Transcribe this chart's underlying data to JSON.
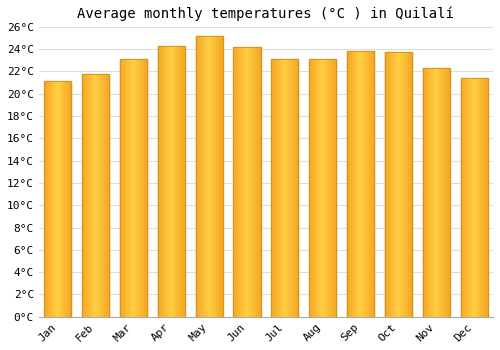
{
  "title": "Average monthly temperatures (°C ) in Quilalí",
  "months": [
    "Jan",
    "Feb",
    "Mar",
    "Apr",
    "May",
    "Jun",
    "Jul",
    "Aug",
    "Sep",
    "Oct",
    "Nov",
    "Dec"
  ],
  "temperatures": [
    21.1,
    21.8,
    23.1,
    24.3,
    25.2,
    24.2,
    23.1,
    23.1,
    23.8,
    23.7,
    22.3,
    21.4
  ],
  "bar_color_center": "#FFD044",
  "bar_color_edge": "#F5A623",
  "bar_edge_color": "#C8922A",
  "ylim": [
    0,
    26
  ],
  "ytick_step": 2,
  "background_color": "#ffffff",
  "grid_color": "#dddddd",
  "title_fontsize": 10,
  "tick_fontsize": 8,
  "font_family": "monospace",
  "bar_width": 0.72
}
